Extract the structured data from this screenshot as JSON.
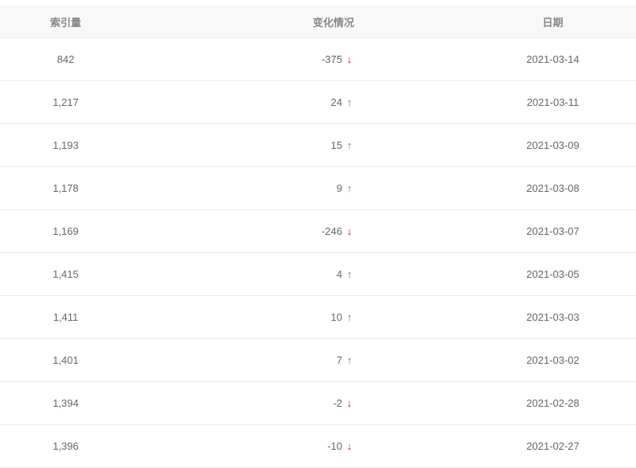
{
  "header": {
    "count": "索引量",
    "change": "变化情况",
    "date": "日期"
  },
  "colors": {
    "up": "#3d9a35",
    "down": "#e60012"
  },
  "rows": [
    {
      "count": "842",
      "change": "-375",
      "direction": "down",
      "date": "2021-03-14"
    },
    {
      "count": "1,217",
      "change": "24",
      "direction": "up",
      "date": "2021-03-11"
    },
    {
      "count": "1,193",
      "change": "15",
      "direction": "up",
      "date": "2021-03-09"
    },
    {
      "count": "1,178",
      "change": "9",
      "direction": "up",
      "date": "2021-03-08"
    },
    {
      "count": "1,169",
      "change": "-246",
      "direction": "down",
      "date": "2021-03-07"
    },
    {
      "count": "1,415",
      "change": "4",
      "direction": "up",
      "date": "2021-03-05"
    },
    {
      "count": "1,411",
      "change": "10",
      "direction": "up",
      "date": "2021-03-03"
    },
    {
      "count": "1,401",
      "change": "7",
      "direction": "up",
      "date": "2021-03-02"
    },
    {
      "count": "1,394",
      "change": "-2",
      "direction": "down",
      "date": "2021-02-28"
    },
    {
      "count": "1,396",
      "change": "-10",
      "direction": "down",
      "date": "2021-02-27"
    }
  ]
}
